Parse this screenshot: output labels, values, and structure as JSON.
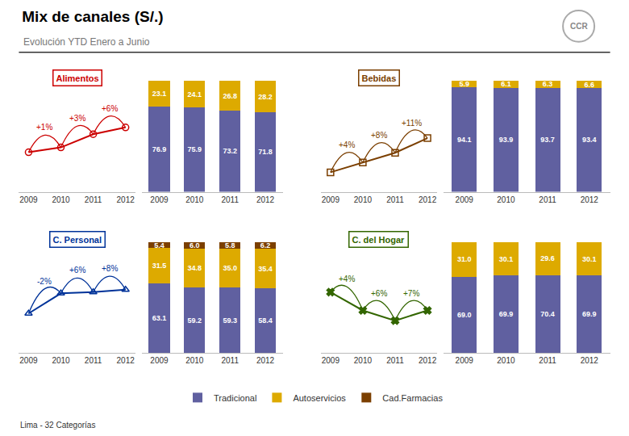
{
  "title": "Mix de canales (S/.)",
  "subtitle": "Evolución YTD Enero a Junio",
  "annotations": [
    "CCR",
    "Lima - 32 Categorías"
  ],
  "chart_data": [
    {
      "type": "line",
      "title": "Alimentos",
      "categories": [
        "2009",
        "2010",
        "2011",
        "2012"
      ],
      "values": [
        23.1,
        24.1,
        26.8,
        28.2
      ],
      "color": "#cc0000",
      "marker": "circle",
      "annotations": [
        "+1%",
        "+3%",
        "+6%"
      ],
      "ylim": [
        15,
        40
      ],
      "tick_labels": "x",
      "grid": false
    },
    {
      "type": "bar",
      "stacked": true,
      "categories": [
        "2009",
        "2010",
        "2011",
        "2012"
      ],
      "series": [
        {
          "name": "Tradicional",
          "color": "#6060a0",
          "values": [
            76.9,
            75.9,
            73.2,
            71.8
          ],
          "value_labels": [
            "76.9",
            "75.9",
            "73.2",
            "71.8"
          ]
        },
        {
          "name": "Autoservicios",
          "color": "#ddaa00",
          "values": [
            23.1,
            24.1,
            26.8,
            28.2
          ],
          "value_labels": [
            "23.1",
            "24.1",
            "26.8",
            "28.2"
          ]
        }
      ],
      "ylim": [
        0,
        110
      ],
      "data_labels": true,
      "tick_labels": "x",
      "grid": false,
      "legend": "bottom"
    },
    {
      "type": "line",
      "title": "Bebidas",
      "categories": [
        "2009",
        "2010",
        "2011",
        "2012"
      ],
      "values": [
        5.9,
        6.1,
        6.3,
        6.6
      ],
      "color": "#7b3f00",
      "marker": "square",
      "annotations": [
        "+4%",
        "+8%",
        "+11%"
      ],
      "ylim": [
        5.5,
        8
      ],
      "tick_labels": "x",
      "grid": false
    },
    {
      "type": "bar",
      "stacked": true,
      "categories": [
        "2009",
        "2010",
        "2011",
        "2012"
      ],
      "series": [
        {
          "name": "Tradicional",
          "color": "#6060a0",
          "values": [
            94.1,
            93.9,
            93.7,
            93.4
          ],
          "value_labels": [
            "94.1",
            "93.9",
            "93.7",
            "93.4"
          ]
        },
        {
          "name": "Autoservicios",
          "color": "#ddaa00",
          "values": [
            5.9,
            6.1,
            6.3,
            6.6
          ],
          "value_labels": [
            "5.9",
            "6.1",
            "6.3",
            "6.6"
          ]
        }
      ],
      "ylim": [
        0,
        110
      ],
      "data_labels": true,
      "tick_labels": "x",
      "grid": false,
      "legend": "bottom"
    },
    {
      "type": "line",
      "title": "C. Personal",
      "categories": [
        "2009",
        "2010",
        "2011",
        "2012"
      ],
      "values": [
        31.5,
        34.8,
        35.0,
        35.4
      ],
      "color": "#003399",
      "marker": "triangle",
      "annotations": [
        "-2%",
        "+6%",
        "+8%"
      ],
      "ylim": [
        25,
        45
      ],
      "tick_labels": "x",
      "grid": false
    },
    {
      "type": "bar",
      "stacked": true,
      "categories": [
        "2009",
        "2010",
        "2011",
        "2012"
      ],
      "series": [
        {
          "name": "Tradicional",
          "color": "#6060a0",
          "values": [
            63.1,
            59.2,
            59.3,
            58.4
          ],
          "value_labels": [
            "63.1",
            "59.2",
            "59.3",
            "58.4"
          ]
        },
        {
          "name": "Autoservicios",
          "color": "#ddaa00",
          "values": [
            31.5,
            34.8,
            35.0,
            35.4
          ],
          "value_labels": [
            "31.5",
            "34.8",
            "35.0",
            "35.4"
          ]
        },
        {
          "name": "Cad.Farmacias",
          "color": "#7b3f00",
          "values": [
            5.4,
            6.0,
            5.8,
            6.2
          ],
          "value_labels": [
            "5.4",
            "6.0",
            "5.8",
            "6.2"
          ]
        }
      ],
      "ylim": [
        0,
        110
      ],
      "data_labels": true,
      "tick_labels": "x",
      "grid": false,
      "legend": "bottom"
    },
    {
      "type": "line",
      "title": "C. del Hogar",
      "categories": [
        "2009",
        "2010",
        "2011",
        "2012"
      ],
      "values": [
        31.0,
        30.1,
        29.6,
        30.1
      ],
      "color": "#336600",
      "marker": "x",
      "annotations": [
        "+4%",
        "+6%",
        "+7%"
      ],
      "ylim": [
        28,
        34
      ],
      "tick_labels": "x",
      "grid": false
    },
    {
      "type": "bar",
      "stacked": true,
      "categories": [
        "2009",
        "2010",
        "2011",
        "2012"
      ],
      "series": [
        {
          "name": "Tradicional",
          "color": "#6060a0",
          "values": [
            69.0,
            69.9,
            70.4,
            69.9
          ],
          "value_labels": [
            "69.0",
            "69.9",
            "70.4",
            "69.9"
          ]
        },
        {
          "name": "Autoservicios",
          "color": "#ddaa00",
          "values": [
            31.0,
            30.1,
            29.6,
            30.1
          ],
          "value_labels": [
            "31.0",
            "30.1",
            "29.6",
            "30.1"
          ]
        }
      ],
      "ylim": [
        0,
        110
      ],
      "data_labels": true,
      "tick_labels": "x",
      "grid": false,
      "legend": "bottom"
    }
  ]
}
